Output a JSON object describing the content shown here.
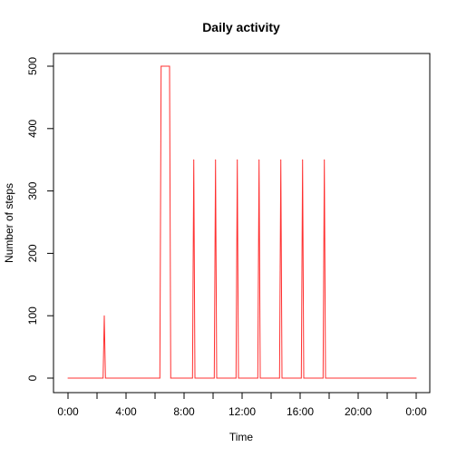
{
  "chart_data": {
    "type": "line",
    "title": "Daily activity",
    "xlabel": "Time",
    "ylabel": "Number of steps",
    "xlim": [
      "0:00",
      "24:00"
    ],
    "ylim": [
      0,
      500
    ],
    "grid": false,
    "legend": "none",
    "line_color": "#ff3030",
    "x_ticks": [
      "0:00",
      "2:00",
      "4:00",
      "6:00",
      "8:00",
      "10:00",
      "12:00",
      "14:00",
      "16:00",
      "18:00",
      "20:00",
      "22:00",
      "0:00"
    ],
    "x_tick_labels": [
      "0:00",
      "",
      "4:00",
      "",
      "8:00",
      "",
      "12:00",
      "",
      "16:00",
      "",
      "20:00",
      "",
      "0:00"
    ],
    "y_ticks": [
      0,
      100,
      200,
      300,
      400,
      500
    ],
    "y_tick_labels": [
      "0",
      "100",
      "200",
      "300",
      "400",
      "500"
    ],
    "series": [
      {
        "x": [
          "0:00",
          "2:25",
          "2:30",
          "2:35",
          "6:20",
          "6:25",
          "7:00",
          "7:05",
          "8:35",
          "8:40",
          "8:45",
          "10:05",
          "10:10",
          "10:15",
          "11:35",
          "11:40",
          "11:45",
          "13:05",
          "13:10",
          "13:15",
          "14:35",
          "14:40",
          "14:45",
          "16:05",
          "16:10",
          "16:15",
          "17:35",
          "17:40",
          "17:45",
          "24:00"
        ],
        "values": [
          0,
          0,
          100,
          0,
          0,
          500,
          500,
          0,
          0,
          350,
          0,
          0,
          350,
          0,
          0,
          350,
          0,
          0,
          350,
          0,
          0,
          350,
          0,
          0,
          350,
          0,
          0,
          350,
          0,
          0
        ]
      }
    ]
  }
}
